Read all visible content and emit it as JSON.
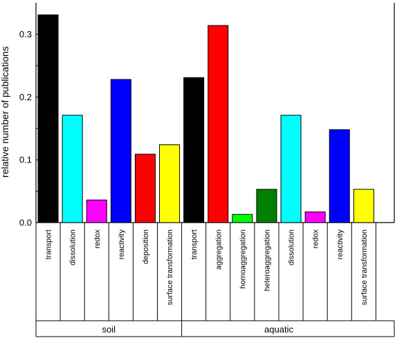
{
  "chart_data": {
    "type": "bar",
    "ylabel": "relative number of publications",
    "ylim": [
      0,
      0.35
    ],
    "yticks": [
      0.0,
      0.1,
      0.2,
      0.3
    ],
    "ytick_labels": [
      "0.0",
      "0.1",
      "0.2",
      "0.3"
    ],
    "grid": false,
    "legend": "none",
    "groups": [
      {
        "label": "soil",
        "categories": [
          "transport",
          "dissolution",
          "redox",
          "reactivity",
          "deposition",
          "surface transformation"
        ],
        "values": [
          0.331,
          0.171,
          0.036,
          0.228,
          0.109,
          0.124
        ],
        "colors": [
          "#000000",
          "#00ffff",
          "#ff00ff",
          "#0000ff",
          "#ff0000",
          "#ffff00"
        ]
      },
      {
        "label": "aquatic",
        "categories": [
          "transport",
          "aggregation",
          "homoaggregation",
          "heteroaggregation",
          "dissolution",
          "redox",
          "reactivity",
          "surface transformation"
        ],
        "values": [
          0.231,
          0.314,
          0.013,
          0.053,
          0.171,
          0.017,
          0.148,
          0.053
        ],
        "colors": [
          "#000000",
          "#ff0000",
          "#00ff00",
          "#008000",
          "#00ffff",
          "#ff00ff",
          "#0000ff",
          "#ffff00"
        ]
      }
    ]
  }
}
